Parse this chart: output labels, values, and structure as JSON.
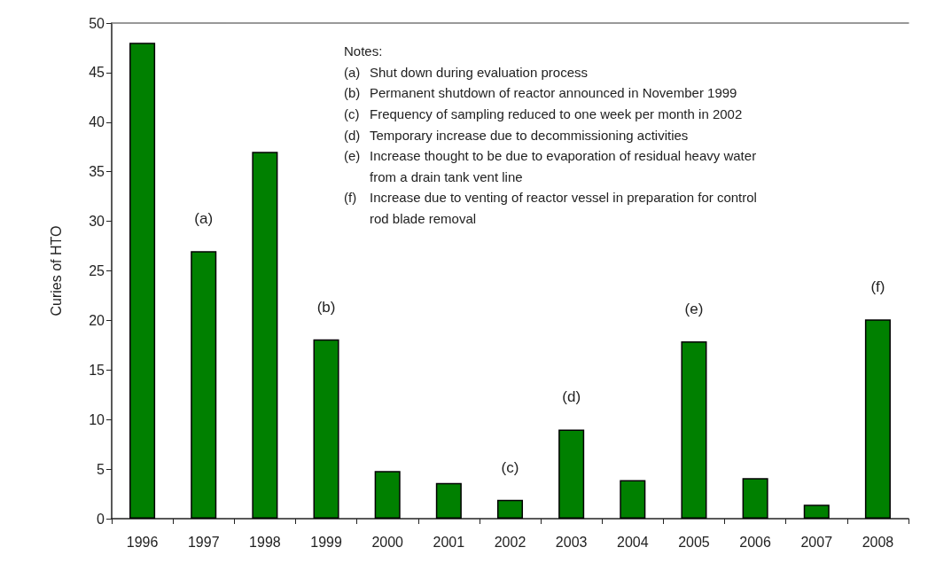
{
  "chart_data": {
    "type": "bar",
    "ylabel": "Curies of HTO",
    "categories": [
      "1996",
      "1997",
      "1998",
      "1999",
      "2000",
      "2001",
      "2002",
      "2003",
      "2004",
      "2005",
      "2006",
      "2007",
      "2008"
    ],
    "values": [
      48,
      27,
      37,
      18.1,
      4.8,
      3.6,
      1.9,
      9.0,
      3.9,
      17.9,
      4.1,
      1.4,
      20.1
    ],
    "color": "#008000",
    "ylim": [
      0,
      50
    ],
    "yticks": [
      0,
      5,
      10,
      15,
      20,
      25,
      30,
      35,
      40,
      45,
      50
    ],
    "grid": false,
    "annotations": [
      "Notes:",
      "(a) Shut down during evaluation process",
      "(b) Permanent shutdown of reactor announced in November 1999",
      "(c) Frequency of sampling reduced to one week per month in 2002",
      "(d) Temporary increase due to decommissioning activities",
      "(e) Increase thought to be due to evaporation of residual heavy water\nfrom a drain tank vent line",
      "(f) Increase due to venting of reactor vessel in preparation for control\nrod blade removal",
      {
        "text": "(a)",
        "x": "1997",
        "y": 27
      },
      {
        "text": "(b)",
        "x": "1999",
        "y": 18.1
      },
      {
        "text": "(c)",
        "x": "2002",
        "y": 1.9
      },
      {
        "text": "(d)",
        "x": "2003",
        "y": 9.0
      },
      {
        "text": "(e)",
        "x": "2005",
        "y": 17.9
      },
      {
        "text": "(f)",
        "x": "2008",
        "y": 20.1
      }
    ]
  }
}
